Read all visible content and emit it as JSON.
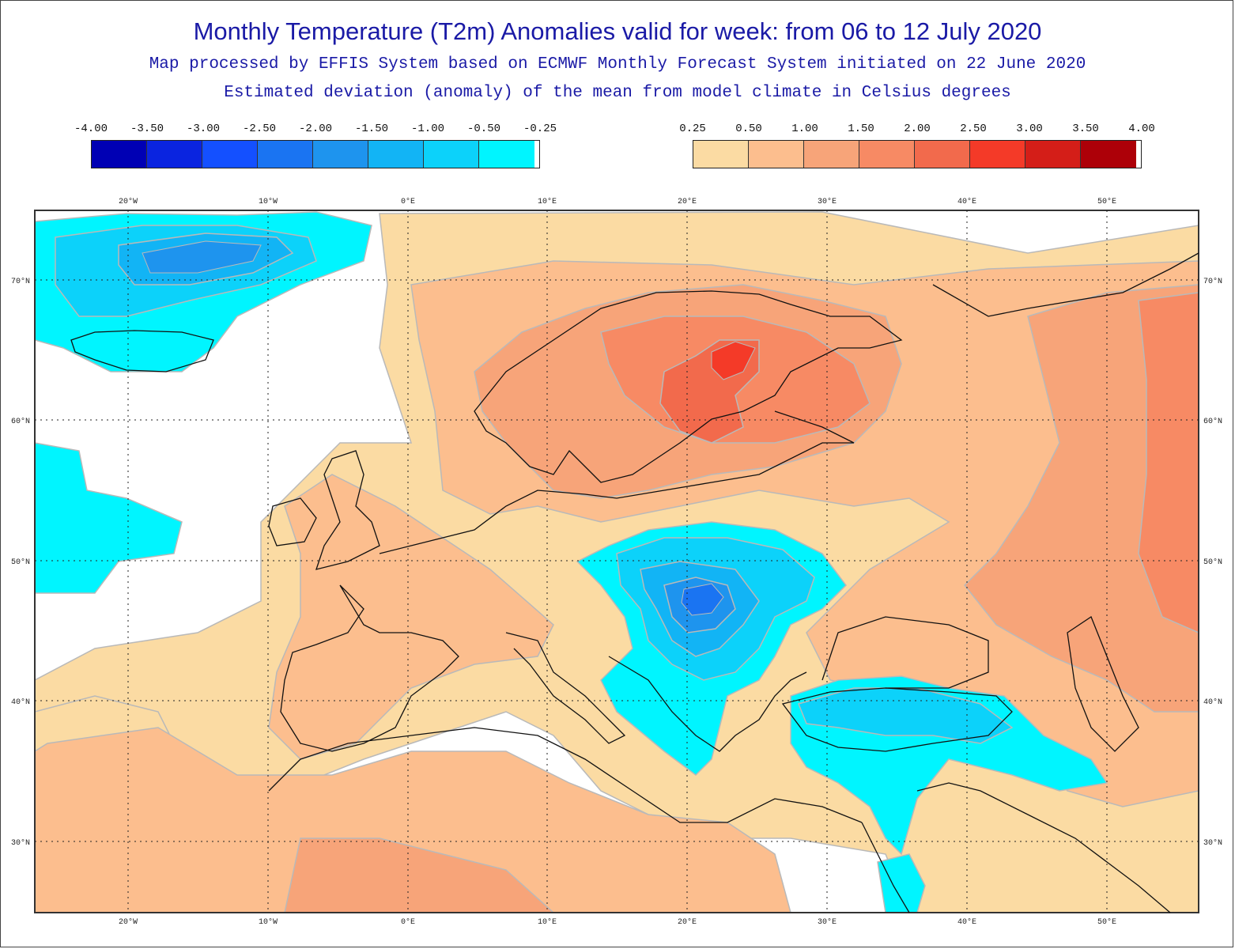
{
  "title": "Monthly Temperature (T2m) Anomalies valid for week: from 06 to 12 July 2020",
  "subtitle1": "Map processed by EFFIS System based on ECMWF Monthly Forecast System initiated on 22 June 2020",
  "subtitle2": "Estimated deviation (anomaly) of the mean from model climate in Celsius degrees",
  "legend_negative": {
    "labels": [
      "-4.00",
      "-3.50",
      "-3.00",
      "-2.50",
      "-2.00",
      "-1.50",
      "-1.00",
      "-0.50",
      "-0.25"
    ],
    "colors": [
      "#0000b4",
      "#0a24e0",
      "#1450ff",
      "#1a74f2",
      "#1e94ee",
      "#12b4f5",
      "#0cd2fa",
      "#00f5ff"
    ]
  },
  "legend_positive": {
    "labels": [
      "0.25",
      "0.50",
      "1.00",
      "1.50",
      "2.00",
      "2.50",
      "3.00",
      "3.50",
      "4.00"
    ],
    "colors": [
      "#fbdba3",
      "#fcbe8e",
      "#f7a479",
      "#f78a64",
      "#f26a4c",
      "#f43a28",
      "#d41e18",
      "#ad0008"
    ]
  },
  "map": {
    "lon_ticks": [
      "20°W",
      "10°W",
      "0°E",
      "10°E",
      "20°E",
      "30°E",
      "40°E",
      "50°E"
    ],
    "lat_ticks": [
      "70°N",
      "60°N",
      "50°N",
      "40°N",
      "30°N"
    ]
  }
}
